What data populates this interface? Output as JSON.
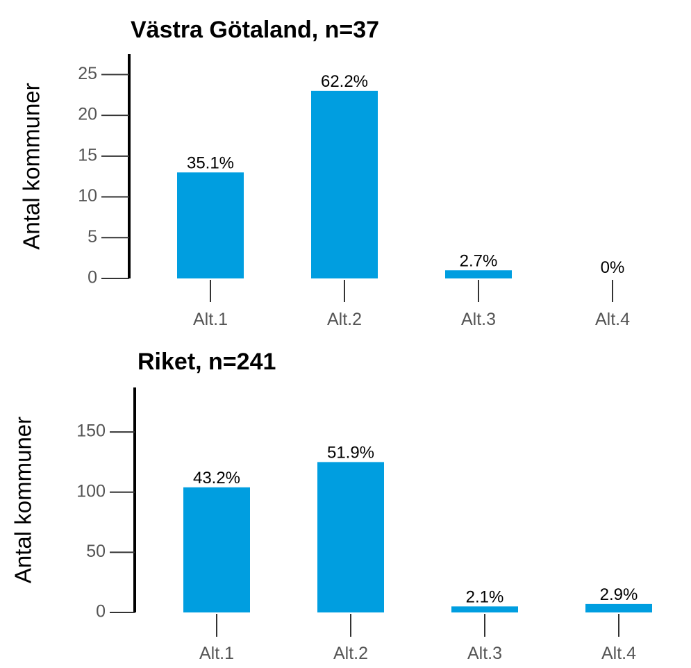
{
  "colors": {
    "bar": "#009EE0",
    "axis": "#000000",
    "tick": "#333333",
    "text": "#000000",
    "tickText": "#555555"
  },
  "chart_data": [
    {
      "type": "bar",
      "title": "Västra Götaland, n=37",
      "xlabel": "",
      "ylabel": "Antal kommuner",
      "categories": [
        "Alt.1",
        "Alt.2",
        "Alt.3",
        "Alt.4"
      ],
      "values": [
        13,
        23,
        1,
        0
      ],
      "data_labels": [
        "35.1%",
        "62.2%",
        "2.7%",
        "0%"
      ],
      "yticks": [
        0,
        5,
        10,
        15,
        20,
        25
      ],
      "ylim": [
        0,
        27.5
      ],
      "grid": false,
      "legend": "none"
    },
    {
      "type": "bar",
      "title": "Riket, n=241",
      "xlabel": "",
      "ylabel": "Antal kommuner",
      "categories": [
        "Alt.1",
        "Alt.2",
        "Alt.3",
        "Alt.4"
      ],
      "values": [
        104,
        125,
        5,
        7
      ],
      "data_labels": [
        "43.2%",
        "51.9%",
        "2.1%",
        "2.9%"
      ],
      "yticks": [
        0,
        50,
        100,
        150
      ],
      "ylim": [
        0,
        187
      ],
      "grid": false,
      "legend": "none"
    }
  ]
}
